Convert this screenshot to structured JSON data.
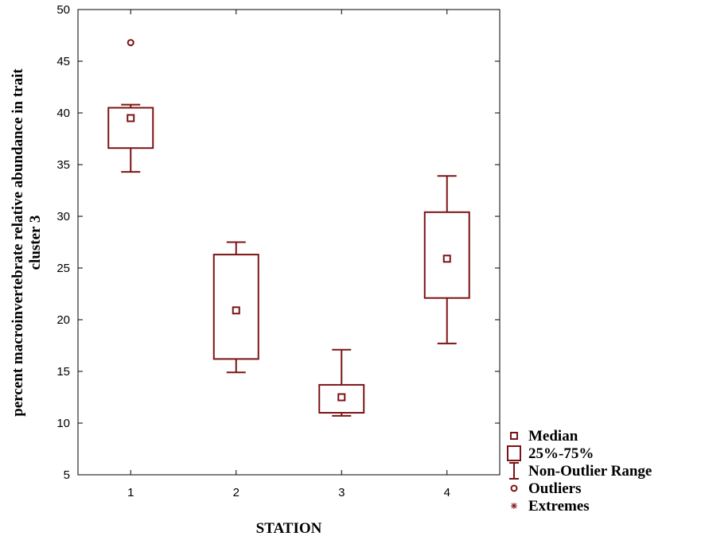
{
  "chart_data": {
    "type": "boxplot",
    "xlabel": "STATION",
    "ylabel_lines": [
      "percent macroinvertebrate relative abundance in trait",
      "cluster 3"
    ],
    "ylim": [
      5,
      50
    ],
    "yticks": [
      5,
      10,
      15,
      20,
      25,
      30,
      35,
      40,
      45,
      50
    ],
    "categories": [
      "1",
      "2",
      "3",
      "4"
    ],
    "boxes": [
      {
        "station": "1",
        "whisker_low": 34.3,
        "q1": 36.6,
        "median": 39.5,
        "q3": 40.5,
        "whisker_high": 40.8,
        "outliers": [
          46.8
        ]
      },
      {
        "station": "2",
        "whisker_low": 14.9,
        "q1": 16.2,
        "median": 20.9,
        "q3": 26.3,
        "whisker_high": 27.5,
        "outliers": []
      },
      {
        "station": "3",
        "whisker_low": 10.7,
        "q1": 11.0,
        "median": 12.5,
        "q3": 13.7,
        "whisker_high": 17.1,
        "outliers": []
      },
      {
        "station": "4",
        "whisker_low": 17.7,
        "q1": 22.1,
        "median": 25.9,
        "q3": 30.4,
        "whisker_high": 33.9,
        "outliers": []
      }
    ],
    "color": "#7b1315",
    "grid": false,
    "legend_position": "bottom-right",
    "legend": [
      {
        "symbol": "median",
        "label": "Median"
      },
      {
        "symbol": "box",
        "label": "25%-75%"
      },
      {
        "symbol": "range",
        "label": "Non-Outlier Range"
      },
      {
        "symbol": "outlier",
        "label": "Outliers"
      },
      {
        "symbol": "extreme",
        "label": "Extremes"
      }
    ]
  }
}
